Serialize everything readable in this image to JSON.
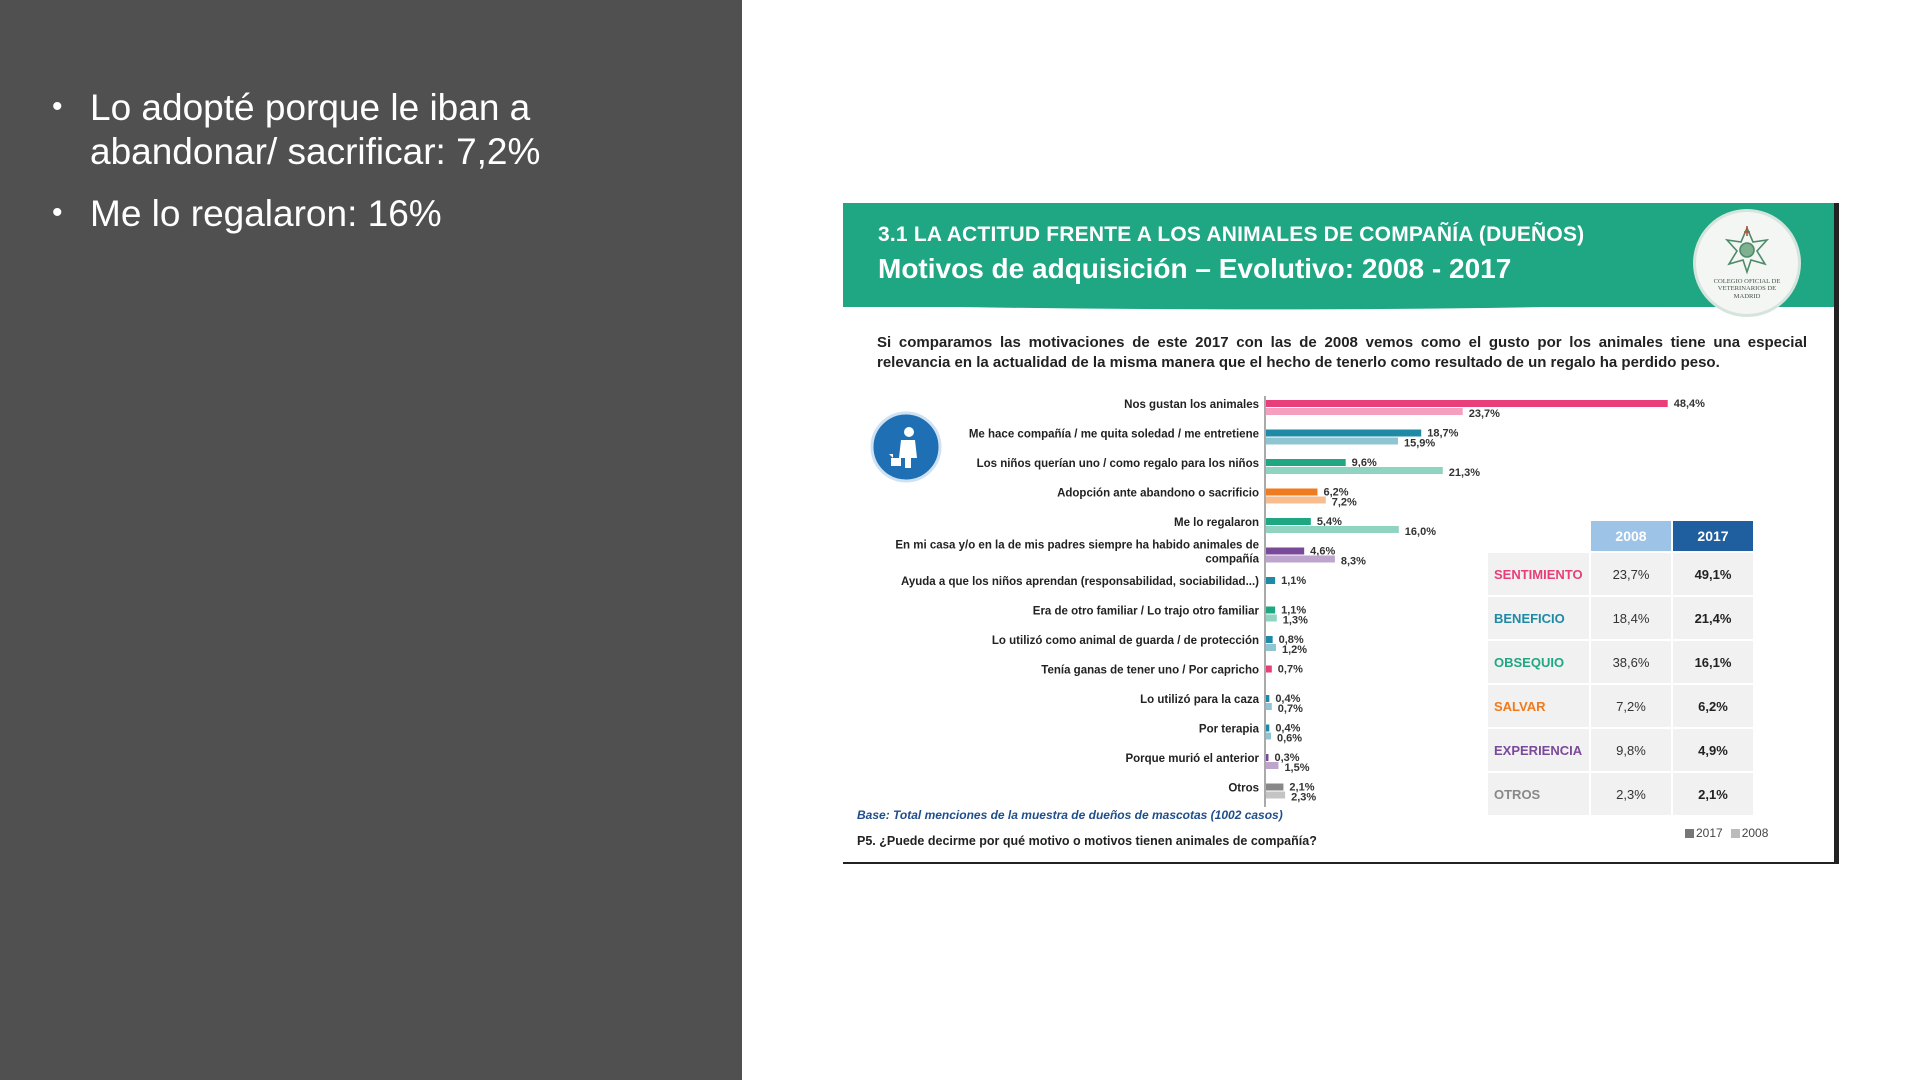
{
  "left_panel": {
    "bullets": [
      "Lo adopté porque le iban a abandonar/ sacrificar: 7,2%",
      "Me lo regalaron: 16%"
    ]
  },
  "slide": {
    "kicker": "3.1 LA ACTITUD FRENTE A LOS ANIMALES DE COMPAÑÍA (DUEÑOS)",
    "title": "Motivos de adquisición – Evolutivo: 2008 - 2017",
    "logo_text": "COLEGIO OFICIAL DE VETERINARIOS DE MADRID",
    "intro": "Si comparamos las motivaciones de este 2017 con las de 2008 vemos como el gusto por los animales tiene una especial relevancia en la actualidad de la misma manera que el hecho de tenerlo como resultado de un regalo ha perdido peso.",
    "base_note": "Base: Total menciones de la muestra de dueños de mascotas (1002 casos)",
    "question": "P5. ¿Puede decirme por qué motivo o motivos tienen animales de compañía?",
    "legend": {
      "label_2017": "2017",
      "label_2008": "2008"
    },
    "colors": {
      "header": "#1fa783",
      "sentimiento": "#e83e7a",
      "beneficio": "#1f8aa6",
      "obsequio": "#1fa783",
      "salvar": "#f07a1e",
      "experiencia": "#7a4a9a",
      "otros": "#888888",
      "table_2008": "#9dc3e6",
      "table_2017": "#1f5f9f"
    }
  },
  "chart_data": {
    "type": "bar",
    "orientation": "horizontal",
    "title": "Motivos de adquisición – Evolutivo: 2008 - 2017",
    "xlim": [
      0,
      50
    ],
    "unit": "%",
    "series_names": [
      "2017",
      "2008"
    ],
    "categories": [
      {
        "label": "Nos gustan los animales",
        "group": "sentimiento",
        "v2017": 48.4,
        "t2017": "48,4%",
        "v2008": 23.7,
        "t2008": "23,7%"
      },
      {
        "label": "Me hace compañía / me quita soledad / me entretiene",
        "group": "beneficio",
        "v2017": 18.7,
        "t2017": "18,7%",
        "v2008": 15.9,
        "t2008": "15,9%"
      },
      {
        "label": "Los niños querían uno / como regalo para los niños",
        "group": "obsequio",
        "v2017": 9.6,
        "t2017": "9,6%",
        "v2008": 21.3,
        "t2008": "21,3%"
      },
      {
        "label": "Adopción ante abandono o sacrificio",
        "group": "salvar",
        "v2017": 6.2,
        "t2017": "6,2%",
        "v2008": 7.2,
        "t2008": "7,2%"
      },
      {
        "label": "Me lo regalaron",
        "group": "obsequio",
        "v2017": 5.4,
        "t2017": "5,4%",
        "v2008": 16.0,
        "t2008": "16,0%"
      },
      {
        "label": "En mi casa y/o en la de mis padres siempre ha habido animales de compañía",
        "label_lines": [
          "En mi casa y/o en la de mis padres siempre ha habido animales de",
          "compañía"
        ],
        "group": "experiencia",
        "v2017": 4.6,
        "t2017": "4,6%",
        "v2008": 8.3,
        "t2008": "8,3%"
      },
      {
        "label": "Ayuda a que los niños aprendan (responsabilidad, sociabilidad...)",
        "group": "beneficio",
        "v2017": 1.1,
        "t2017": "1,1%",
        "v2008": null,
        "t2008": null
      },
      {
        "label": "Era de otro familiar / Lo trajo otro familiar",
        "group": "obsequio",
        "v2017": 1.1,
        "t2017": "1,1%",
        "v2008": 1.3,
        "t2008": "1,3%"
      },
      {
        "label": "Lo utilizó como animal de guarda / de protección",
        "group": "beneficio",
        "v2017": 0.8,
        "t2017": "0,8%",
        "v2008": 1.2,
        "t2008": "1,2%"
      },
      {
        "label": "Tenía ganas de tener uno / Por capricho",
        "group": "sentimiento",
        "v2017": 0.7,
        "t2017": "0,7%",
        "v2008": null,
        "t2008": null
      },
      {
        "label": "Lo utilizó para la caza",
        "group": "beneficio",
        "v2017": 0.4,
        "t2017": "0,4%",
        "v2008": 0.7,
        "t2008": "0,7%"
      },
      {
        "label": "Por terapia",
        "group": "beneficio",
        "v2017": 0.4,
        "t2017": "0,4%",
        "v2008": 0.6,
        "t2008": "0,6%"
      },
      {
        "label": "Porque murió el anterior",
        "group": "experiencia",
        "v2017": 0.3,
        "t2017": "0,3%",
        "v2008": 1.5,
        "t2008": "1,5%"
      },
      {
        "label": "Otros",
        "group": "otros",
        "v2017": 2.1,
        "t2017": "2,1%",
        "v2008": 2.3,
        "t2008": "2,3%"
      }
    ],
    "summary_table": {
      "headers": [
        "2008",
        "2017"
      ],
      "rows": [
        {
          "category": "SENTIMIENTO",
          "group": "sentimiento",
          "v2008": "23,7%",
          "v2017": "49,1%"
        },
        {
          "category": "BENEFICIO",
          "group": "beneficio",
          "v2008": "18,4%",
          "v2017": "21,4%"
        },
        {
          "category": "OBSEQUIO",
          "group": "obsequio",
          "v2008": "38,6%",
          "v2017": "16,1%"
        },
        {
          "category": "SALVAR",
          "group": "salvar",
          "v2008": "7,2%",
          "v2017": "6,2%"
        },
        {
          "category": "EXPERIENCIA",
          "group": "experiencia",
          "v2008": "9,8%",
          "v2017": "4,9%"
        },
        {
          "category": "OTROS",
          "group": "otros",
          "v2008": "2,3%",
          "v2017": "2,1%"
        }
      ]
    }
  }
}
